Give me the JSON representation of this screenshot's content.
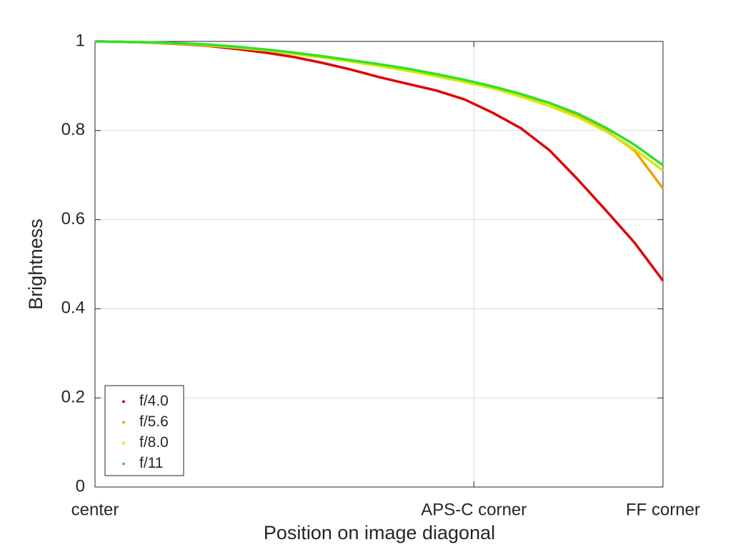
{
  "chart_data": {
    "type": "line",
    "xlabel": "Position on image diagonal",
    "ylabel": "Brightness",
    "x": [
      0,
      0.05,
      0.1,
      0.15,
      0.2,
      0.25,
      0.3,
      0.35,
      0.4,
      0.45,
      0.5,
      0.55,
      0.6,
      0.65,
      0.7,
      0.75,
      0.8,
      0.85,
      0.9,
      0.95,
      1
    ],
    "series": [
      {
        "name": "f/4.0",
        "color": "#e00000",
        "values": [
          1.0,
          0.999,
          0.997,
          0.994,
          0.99,
          0.983,
          0.975,
          0.965,
          0.952,
          0.937,
          0.92,
          0.905,
          0.89,
          0.87,
          0.84,
          0.805,
          0.756,
          0.69,
          0.62,
          0.548,
          0.463
        ]
      },
      {
        "name": "f/5.6",
        "color": "#f0a000",
        "values": [
          1.0,
          0.999,
          0.998,
          0.995,
          0.992,
          0.987,
          0.981,
          0.974,
          0.966,
          0.957,
          0.947,
          0.937,
          0.925,
          0.912,
          0.897,
          0.88,
          0.862,
          0.835,
          0.8,
          0.755,
          0.67
        ]
      },
      {
        "name": "f/8.0",
        "color": "#d8e800",
        "values": [
          1.0,
          0.999,
          0.997,
          0.995,
          0.991,
          0.986,
          0.98,
          0.972,
          0.964,
          0.955,
          0.945,
          0.934,
          0.922,
          0.909,
          0.895,
          0.876,
          0.855,
          0.83,
          0.798,
          0.758,
          0.71
        ]
      },
      {
        "name": "f/11",
        "color": "#30e030",
        "values": [
          1.0,
          0.999,
          0.998,
          0.996,
          0.993,
          0.988,
          0.982,
          0.975,
          0.967,
          0.958,
          0.949,
          0.939,
          0.927,
          0.914,
          0.899,
          0.882,
          0.862,
          0.838,
          0.806,
          0.768,
          0.722
        ]
      }
    ],
    "xlim": [
      0,
      1
    ],
    "xticks": [
      {
        "value": 0,
        "label": "center"
      },
      {
        "value": 0.667,
        "label": "APS-C corner"
      },
      {
        "value": 1,
        "label": "FF corner"
      }
    ],
    "ylim": [
      0,
      1
    ],
    "yticks": [
      0,
      0.2,
      0.4,
      0.6,
      0.8,
      1
    ],
    "grid": true,
    "legend": "lower left"
  }
}
